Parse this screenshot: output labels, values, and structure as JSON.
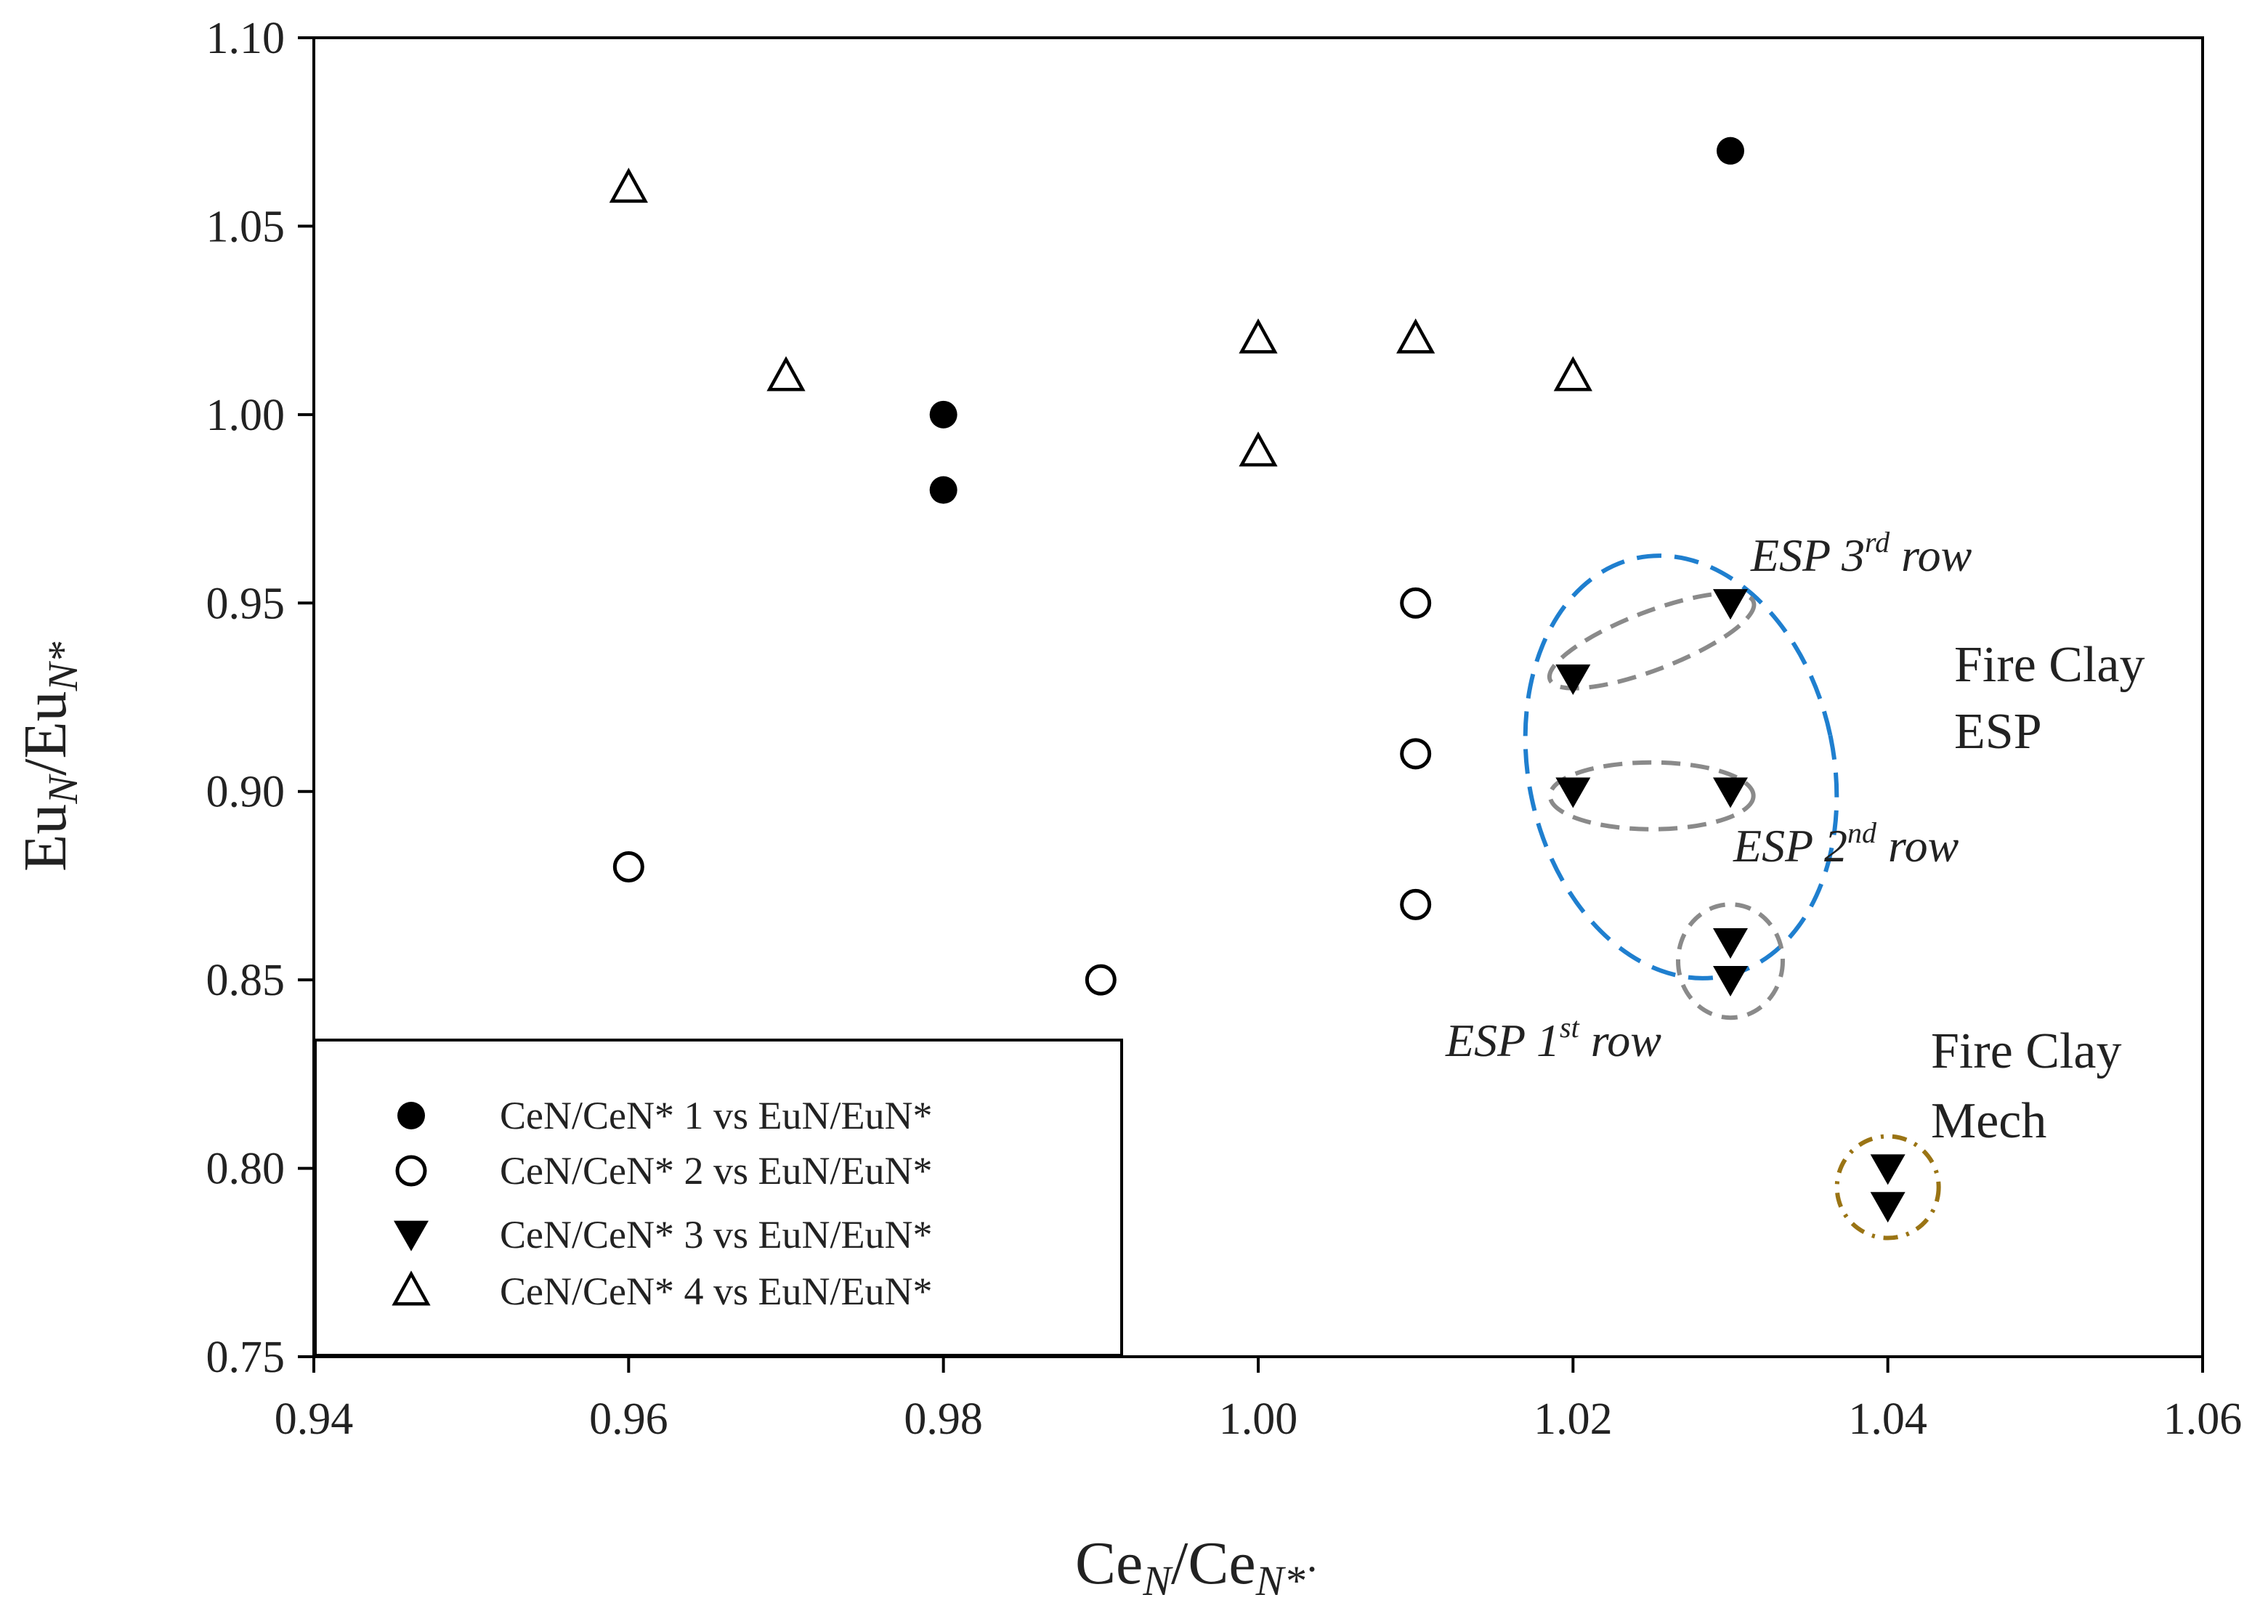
{
  "chart_data": {
    "type": "scatter",
    "title": "",
    "xlabel": {
      "base": "Ce",
      "sub": "N",
      "sep": "/",
      "base2": "Ce",
      "sub2": "N*",
      "trail": "·"
    },
    "ylabel": {
      "base": "Eu",
      "sub": "N",
      "sep": "/",
      "base2": "Eu",
      "sub2": "N*"
    },
    "xlim": [
      0.94,
      1.06
    ],
    "ylim": [
      0.75,
      1.1
    ],
    "xticks": [
      "0.94",
      "0.96",
      "0.98",
      "1.00",
      "1.02",
      "1.04",
      "1.06"
    ],
    "yticks": [
      "0.75",
      "0.80",
      "0.85",
      "0.90",
      "0.95",
      "1.00",
      "1.05",
      "1.10"
    ],
    "grid": false,
    "legend_position": "bottom-left",
    "series": [
      {
        "name": "CeN/CeN* 1 vs EuN/EuN*",
        "marker": "filled-circle",
        "points": [
          [
            0.98,
            1.0
          ],
          [
            0.98,
            0.98
          ],
          [
            1.03,
            1.07
          ]
        ]
      },
      {
        "name": "CeN/CeN* 2 vs EuN/EuN*",
        "marker": "open-circle",
        "points": [
          [
            0.96,
            0.88
          ],
          [
            0.99,
            0.85
          ],
          [
            1.01,
            0.95
          ],
          [
            1.01,
            0.91
          ],
          [
            1.01,
            0.87
          ]
        ]
      },
      {
        "name": "CeN/CeN* 3 vs EuN/EuN*",
        "marker": "filled-triangle-down",
        "points": [
          [
            1.02,
            0.93
          ],
          [
            1.03,
            0.95
          ],
          [
            1.02,
            0.9
          ],
          [
            1.03,
            0.9
          ],
          [
            1.03,
            0.86
          ],
          [
            1.03,
            0.85
          ],
          [
            1.04,
            0.8
          ],
          [
            1.04,
            0.79
          ]
        ]
      },
      {
        "name": "CeN/CeN* 4 vs EuN/EuN*",
        "marker": "open-triangle-up",
        "points": [
          [
            0.96,
            1.06
          ],
          [
            0.97,
            1.01
          ],
          [
            1.0,
            1.02
          ],
          [
            1.0,
            0.99
          ],
          [
            1.01,
            1.02
          ],
          [
            1.02,
            1.01
          ]
        ]
      }
    ],
    "annotations": {
      "esp3": {
        "prefix": "ESP 3",
        "sup": "rd",
        "suffix": " row"
      },
      "esp2": {
        "prefix": "ESP 2",
        "sup": "nd",
        "suffix": " row"
      },
      "esp1": {
        "prefix": "ESP 1",
        "sup": "st",
        "suffix": " row"
      },
      "fire_clay_esp": [
        "Fire Clay",
        "ESP"
      ],
      "fire_clay_mech": [
        "Fire Clay",
        "Mech"
      ]
    },
    "colors": {
      "esp_group_ellipse": "#1f7fcf",
      "row_ellipse": "#8a8a8a",
      "mech_circle": "#9a7414",
      "marker": "#000000"
    }
  }
}
